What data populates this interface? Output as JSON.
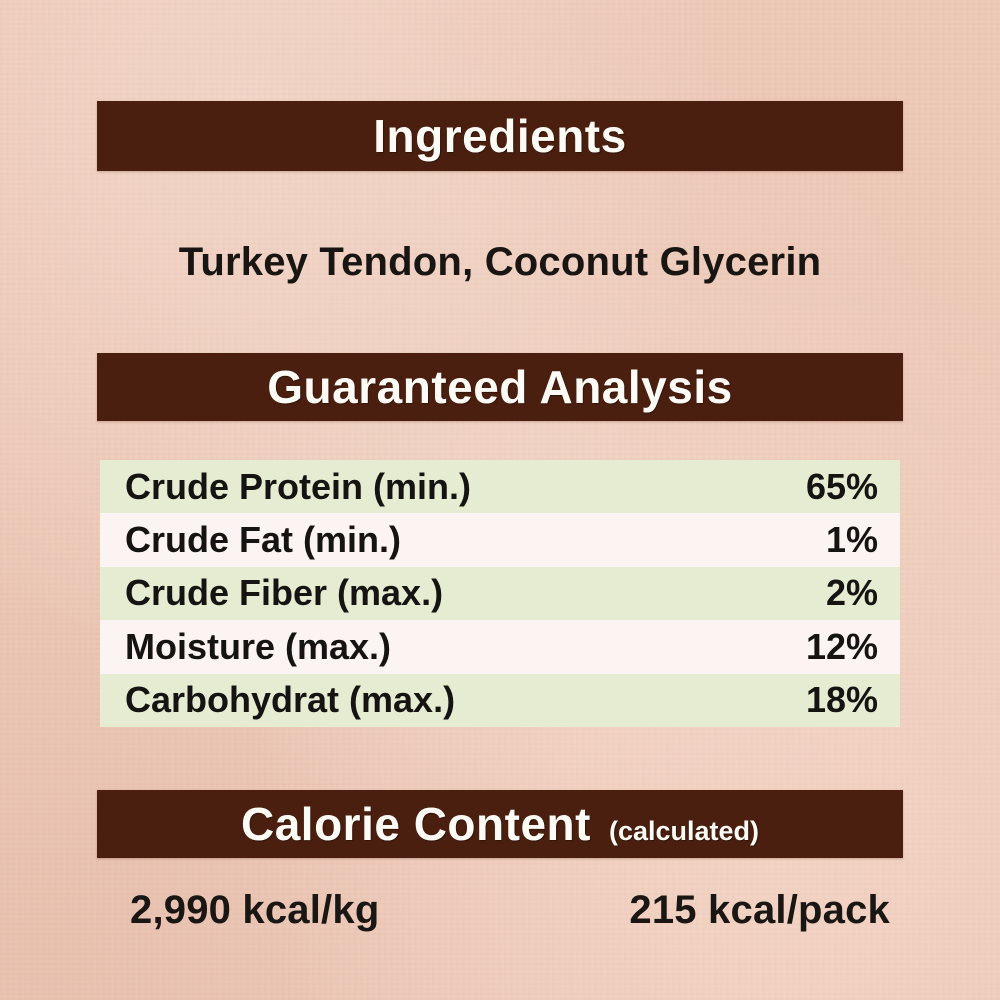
{
  "page": {
    "background_color": "#eecab9",
    "bar_color": "#4b1f0f",
    "row_green_color": "#e6ecd2",
    "row_light_color": "#fcf4f2"
  },
  "ingredients": {
    "title": "Ingredients",
    "value": "Turkey Tendon, Coconut Glycerin"
  },
  "guaranteed_analysis": {
    "title": "Guaranteed Analysis",
    "rows": [
      {
        "label": "Crude Protein (min.)",
        "value": "65%"
      },
      {
        "label": "Crude Fat (min.)",
        "value": "1%"
      },
      {
        "label": "Crude Fiber (max.)",
        "value": "2%"
      },
      {
        "label": "Moisture (max.)",
        "value": "12%"
      },
      {
        "label": "Carbohydrat (max.)",
        "value": "18%"
      }
    ]
  },
  "calorie_content": {
    "title": "Calorie Content",
    "subtitle": "(calculated)",
    "per_kg": "2,990 kcal/kg",
    "per_pack": "215 kcal/pack"
  }
}
